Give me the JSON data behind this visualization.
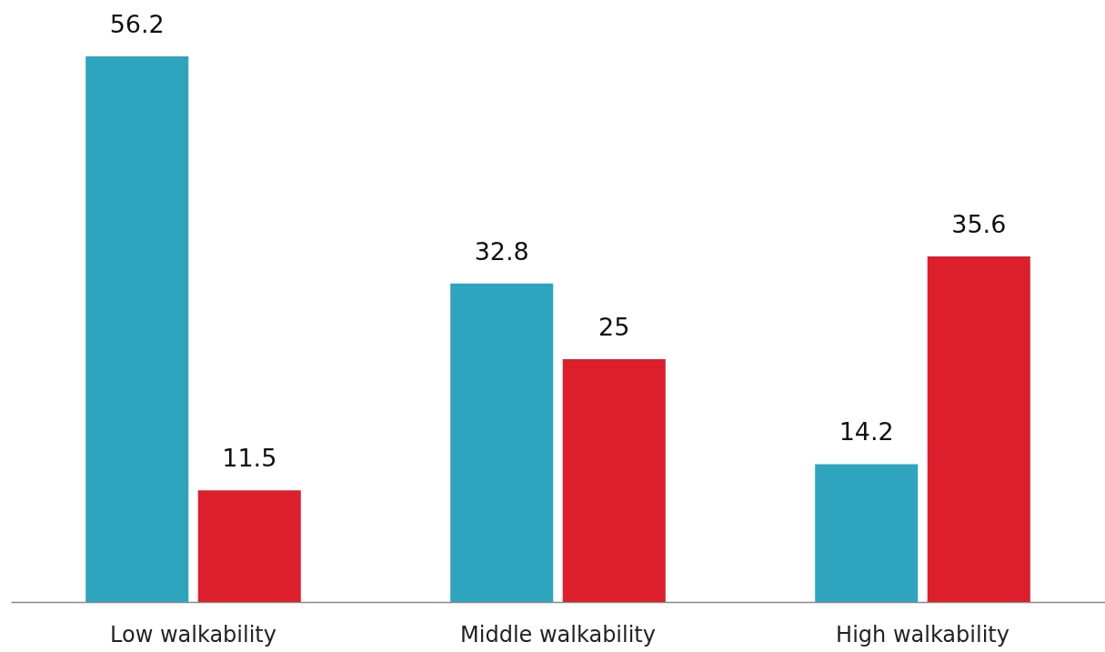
{
  "chart_data": {
    "type": "bar",
    "categories": [
      "Low walkability",
      "Middle walkability",
      "High walkability"
    ],
    "series": [
      {
        "color": "#2ea4bf",
        "values": [
          56.2,
          32.8,
          14.2
        ]
      },
      {
        "color": "#dc1f2a",
        "values": [
          11.5,
          25,
          35.6
        ]
      }
    ],
    "data_labels": true,
    "grid": false,
    "legend": false
  }
}
